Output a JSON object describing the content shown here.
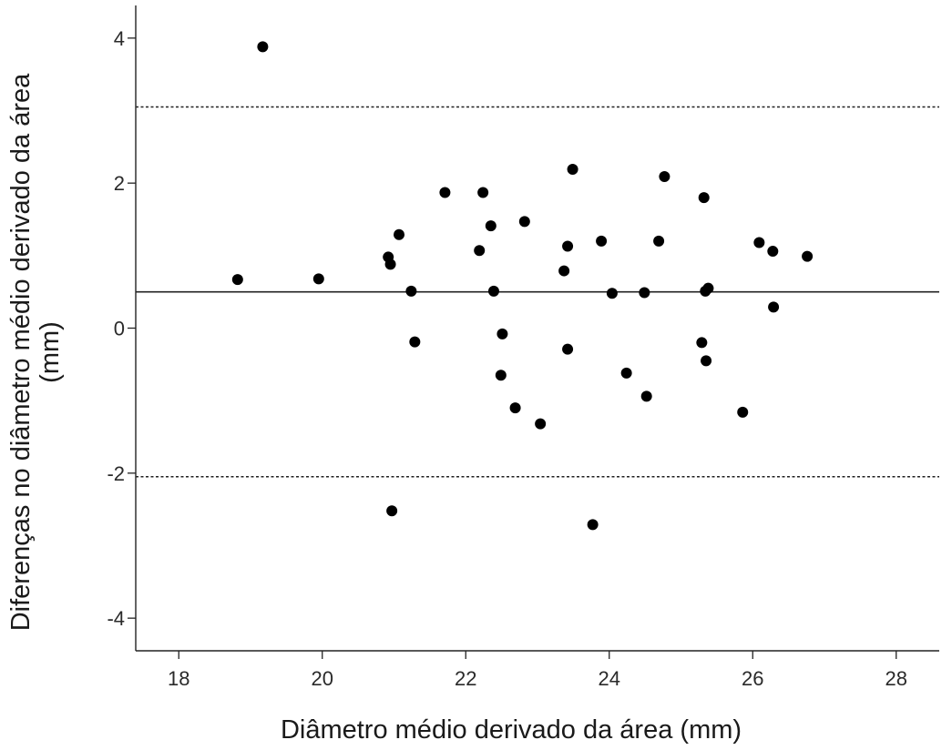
{
  "chart_data": {
    "type": "scatter",
    "title": "",
    "xlabel": "Diâmetro médio derivado da área (mm)",
    "ylabel": "Diferenças no diâmetro médio derivado da área",
    "ylabel_line2": "(mm)",
    "xlim": [
      17.4,
      28.6
    ],
    "ylim": [
      -4.45,
      4.45
    ],
    "x_ticks": [
      18,
      20,
      22,
      24,
      26,
      28
    ],
    "y_ticks": [
      -4,
      -2,
      0,
      2,
      4
    ],
    "x_tick_labels": [
      "18",
      "20",
      "22",
      "24",
      "26",
      "28"
    ],
    "y_tick_labels": [
      "-4",
      "-2",
      "0",
      "2",
      "4"
    ],
    "grid": false,
    "legend": "none",
    "reference_lines": [
      {
        "y": 0.5,
        "style": "solid"
      },
      {
        "y": 3.05,
        "style": "dotted"
      },
      {
        "y": -2.05,
        "style": "dotted"
      }
    ],
    "marker_color": "#000000",
    "series": [
      {
        "points": [
          {
            "x": 18.82,
            "y": 0.67
          },
          {
            "x": 19.17,
            "y": 3.88
          },
          {
            "x": 19.95,
            "y": 0.68
          },
          {
            "x": 20.92,
            "y": 0.98
          },
          {
            "x": 20.95,
            "y": 0.88
          },
          {
            "x": 20.97,
            "y": -2.52
          },
          {
            "x": 21.07,
            "y": 1.29
          },
          {
            "x": 21.24,
            "y": 0.51
          },
          {
            "x": 21.29,
            "y": -0.19
          },
          {
            "x": 21.71,
            "y": 1.87
          },
          {
            "x": 22.19,
            "y": 1.07
          },
          {
            "x": 22.24,
            "y": 1.87
          },
          {
            "x": 22.35,
            "y": 1.41
          },
          {
            "x": 22.39,
            "y": 0.51
          },
          {
            "x": 22.49,
            "y": -0.65
          },
          {
            "x": 22.51,
            "y": -0.08
          },
          {
            "x": 22.69,
            "y": -1.1
          },
          {
            "x": 22.82,
            "y": 1.47
          },
          {
            "x": 23.04,
            "y": -1.32
          },
          {
            "x": 23.37,
            "y": 0.79
          },
          {
            "x": 23.42,
            "y": 1.13
          },
          {
            "x": 23.42,
            "y": -0.29
          },
          {
            "x": 23.49,
            "y": 2.19
          },
          {
            "x": 23.77,
            "y": -2.71
          },
          {
            "x": 23.89,
            "y": 1.2
          },
          {
            "x": 24.04,
            "y": 0.48
          },
          {
            "x": 24.24,
            "y": -0.62
          },
          {
            "x": 24.49,
            "y": 0.49
          },
          {
            "x": 24.52,
            "y": -0.94
          },
          {
            "x": 24.69,
            "y": 1.2
          },
          {
            "x": 24.77,
            "y": 2.09
          },
          {
            "x": 25.29,
            "y": -0.2
          },
          {
            "x": 25.32,
            "y": 1.8
          },
          {
            "x": 25.34,
            "y": 0.51
          },
          {
            "x": 25.35,
            "y": -0.45
          },
          {
            "x": 25.38,
            "y": 0.55
          },
          {
            "x": 25.86,
            "y": -1.16
          },
          {
            "x": 26.09,
            "y": 1.18
          },
          {
            "x": 26.28,
            "y": 1.06
          },
          {
            "x": 26.29,
            "y": 0.29
          },
          {
            "x": 26.76,
            "y": 0.99
          }
        ]
      }
    ]
  }
}
